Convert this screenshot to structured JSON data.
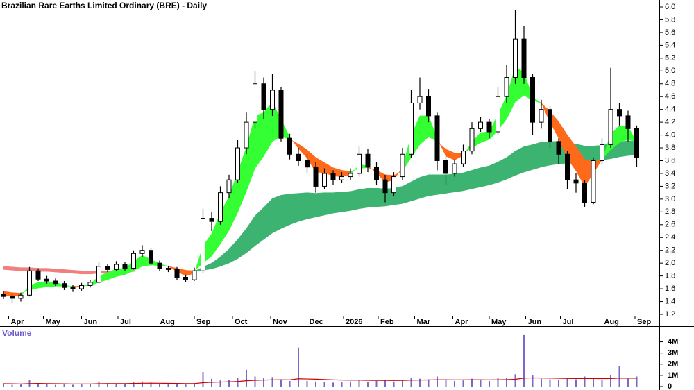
{
  "chart_data": [
    {
      "type": "candlestick",
      "title": "Brazilian Rare Earths Limited Ordinary (BRE) - Daily",
      "x": [
        2,
        7,
        12,
        17,
        22,
        27,
        32,
        37,
        42,
        47,
        52,
        57,
        62,
        67,
        72,
        77,
        82,
        87,
        92,
        97,
        102,
        107,
        112,
        117,
        122,
        127,
        132,
        137,
        142,
        147,
        152,
        157,
        162,
        167,
        172,
        177,
        182,
        187,
        192,
        197,
        202,
        207,
        212,
        217,
        222,
        227,
        232,
        237,
        242,
        247,
        252,
        257,
        262,
        267,
        272,
        277,
        282,
        287,
        292,
        297,
        302,
        307,
        312,
        317,
        322,
        327,
        332,
        337,
        342,
        347,
        352,
        357,
        362,
        367
      ],
      "open": [
        1.52,
        1.48,
        1.45,
        1.5,
        1.88,
        1.75,
        1.72,
        1.68,
        1.62,
        1.6,
        1.65,
        1.7,
        1.95,
        1.9,
        1.98,
        1.92,
        2.15,
        2.2,
        2.0,
        1.92,
        1.9,
        1.78,
        1.74,
        1.88,
        2.7,
        2.65,
        3.1,
        3.3,
        3.8,
        4.2,
        4.8,
        4.4,
        4.7,
        3.95,
        3.7,
        3.6,
        3.5,
        3.2,
        3.4,
        3.3,
        3.35,
        3.4,
        3.7,
        3.5,
        3.3,
        3.1,
        3.35,
        3.7,
        4.5,
        4.6,
        4.3,
        3.6,
        3.4,
        3.55,
        3.75,
        4.1,
        4.2,
        4.05,
        4.6,
        4.9,
        5.5,
        4.9,
        4.2,
        4.4,
        3.9,
        3.7,
        3.3,
        3.25,
        2.95,
        3.6,
        3.85,
        4.4,
        4.3,
        4.1
      ],
      "high": [
        1.56,
        1.52,
        1.54,
        1.94,
        1.92,
        1.8,
        1.76,
        1.72,
        1.66,
        1.69,
        1.74,
        2.02,
        1.99,
        2.03,
        2.02,
        2.2,
        2.28,
        2.24,
        2.04,
        1.96,
        1.94,
        1.82,
        1.93,
        2.85,
        2.8,
        3.2,
        3.38,
        3.92,
        4.35,
        5.0,
        4.9,
        4.95,
        4.75,
        4.02,
        3.8,
        3.7,
        3.58,
        3.48,
        3.45,
        3.42,
        3.48,
        3.82,
        3.78,
        3.58,
        3.38,
        3.42,
        3.8,
        4.7,
        4.9,
        4.72,
        4.35,
        3.7,
        3.62,
        3.85,
        4.2,
        4.28,
        4.25,
        4.75,
        5.1,
        5.95,
        5.7,
        4.95,
        4.55,
        4.45,
        3.95,
        3.75,
        3.4,
        3.3,
        3.65,
        3.95,
        5.05,
        4.5,
        4.38,
        4.15
      ],
      "low": [
        1.44,
        1.38,
        1.4,
        1.48,
        1.72,
        1.68,
        1.64,
        1.58,
        1.55,
        1.57,
        1.62,
        1.68,
        1.86,
        1.88,
        1.88,
        1.9,
        2.1,
        1.96,
        1.88,
        1.86,
        1.74,
        1.7,
        1.72,
        1.85,
        2.5,
        2.6,
        3.02,
        3.25,
        3.7,
        4.1,
        4.25,
        4.3,
        3.9,
        3.62,
        3.52,
        3.4,
        3.1,
        3.15,
        3.22,
        3.25,
        3.3,
        3.35,
        3.42,
        3.22,
        2.95,
        3.05,
        3.3,
        3.65,
        4.4,
        4.2,
        3.45,
        3.22,
        3.35,
        3.5,
        3.7,
        4.05,
        3.95,
        4.0,
        4.5,
        4.8,
        4.8,
        4.0,
        4.1,
        3.8,
        3.55,
        3.15,
        3.1,
        2.88,
        2.92,
        3.55,
        3.8,
        4.15,
        3.9,
        3.5
      ],
      "close": [
        1.48,
        1.45,
        1.5,
        1.88,
        1.75,
        1.72,
        1.68,
        1.62,
        1.6,
        1.65,
        1.7,
        1.95,
        1.9,
        1.98,
        1.92,
        2.15,
        2.2,
        2.0,
        1.92,
        1.9,
        1.78,
        1.74,
        1.88,
        2.7,
        2.65,
        3.1,
        3.3,
        3.8,
        4.2,
        4.8,
        4.4,
        4.7,
        3.95,
        3.7,
        3.6,
        3.5,
        3.2,
        3.4,
        3.3,
        3.35,
        3.4,
        3.7,
        3.5,
        3.3,
        3.1,
        3.35,
        3.7,
        4.5,
        4.6,
        4.3,
        3.6,
        3.4,
        3.55,
        3.75,
        4.1,
        4.2,
        4.05,
        4.6,
        4.9,
        5.5,
        4.9,
        4.2,
        4.4,
        3.9,
        3.7,
        3.3,
        3.25,
        2.95,
        3.6,
        3.85,
        4.4,
        4.3,
        4.1,
        3.65
      ],
      "ribbons": [
        {
          "up_color": "#3cb371",
          "down_color": "#f08080",
          "fast": [
            1.9,
            1.89,
            1.88,
            1.88,
            1.87,
            1.87,
            1.86,
            1.85,
            1.84,
            1.83,
            1.83,
            1.84,
            1.84,
            1.85,
            1.85,
            1.87,
            1.88,
            1.88,
            1.88,
            1.88,
            1.87,
            1.86,
            1.87,
            1.94,
            2.0,
            2.1,
            2.22,
            2.37,
            2.54,
            2.74,
            2.87,
            3.01,
            3.06,
            3.08,
            3.09,
            3.1,
            3.09,
            3.1,
            3.1,
            3.11,
            3.12,
            3.15,
            3.17,
            3.17,
            3.16,
            3.17,
            3.2,
            3.27,
            3.34,
            3.38,
            3.38,
            3.38,
            3.39,
            3.41,
            3.45,
            3.49,
            3.52,
            3.58,
            3.65,
            3.75,
            3.82,
            3.85,
            3.89,
            3.9,
            3.9,
            3.88,
            3.86,
            3.83,
            3.83,
            3.84,
            3.87,
            3.89,
            3.91,
            3.9
          ],
          "slow": [
            1.95,
            1.94,
            1.93,
            1.93,
            1.92,
            1.92,
            1.91,
            1.9,
            1.89,
            1.88,
            1.88,
            1.88,
            1.88,
            1.88,
            1.88,
            1.88,
            1.88,
            1.88,
            1.88,
            1.88,
            1.88,
            1.87,
            1.87,
            1.89,
            1.91,
            1.95,
            2.0,
            2.07,
            2.16,
            2.27,
            2.37,
            2.47,
            2.54,
            2.6,
            2.65,
            2.69,
            2.72,
            2.75,
            2.78,
            2.8,
            2.82,
            2.85,
            2.87,
            2.88,
            2.89,
            2.91,
            2.93,
            2.97,
            3.01,
            3.05,
            3.07,
            3.09,
            3.11,
            3.13,
            3.16,
            3.19,
            3.22,
            3.26,
            3.31,
            3.37,
            3.42,
            3.46,
            3.5,
            3.53,
            3.55,
            3.56,
            3.58,
            3.58,
            3.59,
            3.61,
            3.63,
            3.66,
            3.68,
            3.69
          ]
        },
        {
          "up_color": "#33ff33",
          "down_color": "#ff6a1a",
          "fast": [
            1.5,
            1.48,
            1.49,
            1.65,
            1.7,
            1.71,
            1.7,
            1.66,
            1.63,
            1.64,
            1.67,
            1.8,
            1.85,
            1.91,
            1.92,
            2.03,
            2.12,
            2.06,
            1.99,
            1.95,
            1.87,
            1.8,
            1.84,
            2.27,
            2.46,
            2.78,
            3.04,
            3.42,
            3.81,
            4.3,
            4.35,
            4.52,
            4.24,
            3.97,
            3.79,
            3.64,
            3.42,
            3.41,
            3.36,
            3.35,
            3.38,
            3.54,
            3.52,
            3.41,
            3.26,
            3.3,
            3.5,
            4.0,
            4.3,
            4.3,
            3.95,
            3.67,
            3.61,
            3.68,
            3.89,
            4.04,
            4.05,
            4.32,
            4.61,
            5.06,
            4.98,
            4.59,
            4.5,
            4.2,
            3.95,
            3.63,
            3.44,
            3.2,
            3.4,
            3.62,
            4.01,
            4.15,
            4.13,
            3.89
          ],
          "slow": [
            1.56,
            1.54,
            1.53,
            1.58,
            1.61,
            1.63,
            1.64,
            1.64,
            1.64,
            1.64,
            1.65,
            1.7,
            1.74,
            1.79,
            1.82,
            1.88,
            1.95,
            1.97,
            1.96,
            1.95,
            1.92,
            1.89,
            1.88,
            2.0,
            2.11,
            2.3,
            2.51,
            2.79,
            3.12,
            3.48,
            3.67,
            3.9,
            3.98,
            3.93,
            3.86,
            3.77,
            3.65,
            3.57,
            3.49,
            3.45,
            3.43,
            3.48,
            3.49,
            3.45,
            3.38,
            3.37,
            3.44,
            3.65,
            3.85,
            3.97,
            3.9,
            3.78,
            3.72,
            3.72,
            3.8,
            3.88,
            3.93,
            4.07,
            4.25,
            4.52,
            4.62,
            4.54,
            4.5,
            4.37,
            4.21,
            4.0,
            3.82,
            3.62,
            3.58,
            3.62,
            3.77,
            3.88,
            3.93,
            3.89
          ]
        }
      ],
      "xlim": [
        0,
        380
      ],
      "xticks": [
        {
          "value": 5,
          "label": "Apr"
        },
        {
          "value": 25,
          "label": "May"
        },
        {
          "value": 47,
          "label": "Jun"
        },
        {
          "value": 68,
          "label": "Jul"
        },
        {
          "value": 91,
          "label": "Aug"
        },
        {
          "value": 112,
          "label": "Sep"
        },
        {
          "value": 134,
          "label": "Oct"
        },
        {
          "value": 156,
          "label": "Nov"
        },
        {
          "value": 177,
          "label": "Dec"
        },
        {
          "value": 198,
          "label": "2026"
        },
        {
          "value": 218,
          "label": "Feb"
        },
        {
          "value": 239,
          "label": "Mar"
        },
        {
          "value": 261,
          "label": "Apr"
        },
        {
          "value": 282,
          "label": "May"
        },
        {
          "value": 303,
          "label": "Jun"
        },
        {
          "value": 323,
          "label": "Jul"
        },
        {
          "value": 347,
          "label": "Aug"
        },
        {
          "value": 366,
          "label": "Sep"
        }
      ],
      "ylim": [
        1.2,
        6.0
      ],
      "yticks": [
        {
          "value": 6,
          "label": "6.0"
        },
        5.8,
        5.6,
        5.4,
        5.2,
        {
          "value": 5,
          "label": "5.0"
        },
        4.8,
        4.6,
        4.4,
        4.2,
        {
          "value": 4,
          "label": "4.0"
        },
        3.8,
        3.6,
        3.4,
        3.2,
        {
          "value": 3,
          "label": "3.0"
        },
        2.8,
        2.6,
        2.4,
        2.2,
        {
          "value": 2,
          "label": "2.0"
        },
        1.8,
        1.6,
        1.4,
        1.2
      ],
      "up_color": "#ffffff",
      "down_color": "#000000"
    },
    {
      "type": "bar",
      "title": "Volume",
      "color": "#7b68c8",
      "values": [
        200000,
        150000,
        180000,
        600000,
        300000,
        200000,
        150000,
        180000,
        160000,
        200000,
        220000,
        450000,
        300000,
        250000,
        280000,
        400000,
        450000,
        350000,
        250000,
        200000,
        220000,
        180000,
        300000,
        1300000,
        700000,
        550000,
        600000,
        800000,
        1500000,
        900000,
        750000,
        850000,
        650000,
        500000,
        3500000,
        500000,
        450000,
        400000,
        350000,
        400000,
        450000,
        600000,
        400000,
        500000,
        550000,
        450000,
        600000,
        800000,
        700000,
        650000,
        900000,
        650000,
        500000,
        550000,
        700000,
        600000,
        500000,
        800000,
        750000,
        1100000,
        4600000,
        1000000,
        700000,
        650000,
        600000,
        700000,
        650000,
        900000,
        800000,
        600000,
        1000000,
        1800000,
        700000,
        900000
      ],
      "average": {
        "color": "#cc0000",
        "values": [
          250000,
          240000,
          230000,
          260000,
          270000,
          260000,
          250000,
          240000,
          230000,
          230000,
          230000,
          250000,
          260000,
          260000,
          260000,
          270000,
          290000,
          300000,
          290000,
          280000,
          270000,
          260000,
          260000,
          340000,
          380000,
          400000,
          420000,
          450000,
          520000,
          560000,
          580000,
          600000,
          610000,
          600000,
          700000,
          680000,
          660000,
          630000,
          600000,
          580000,
          570000,
          570000,
          560000,
          550000,
          550000,
          540000,
          550000,
          570000,
          580000,
          590000,
          610000,
          610000,
          600000,
          600000,
          610000,
          610000,
          600000,
          610000,
          620000,
          650000,
          760000,
          780000,
          770000,
          760000,
          740000,
          730000,
          720000,
          720000,
          720000,
          710000,
          720000,
          760000,
          750000,
          750000
        ]
      },
      "ylim": [
        0,
        5400000
      ],
      "yticks": [
        {
          "value": 4000000,
          "label": "4M"
        },
        {
          "value": 3000000,
          "label": "3M"
        },
        {
          "value": 2000000,
          "label": "2M"
        },
        {
          "value": 1000000,
          "label": "1M"
        },
        0
      ]
    }
  ]
}
